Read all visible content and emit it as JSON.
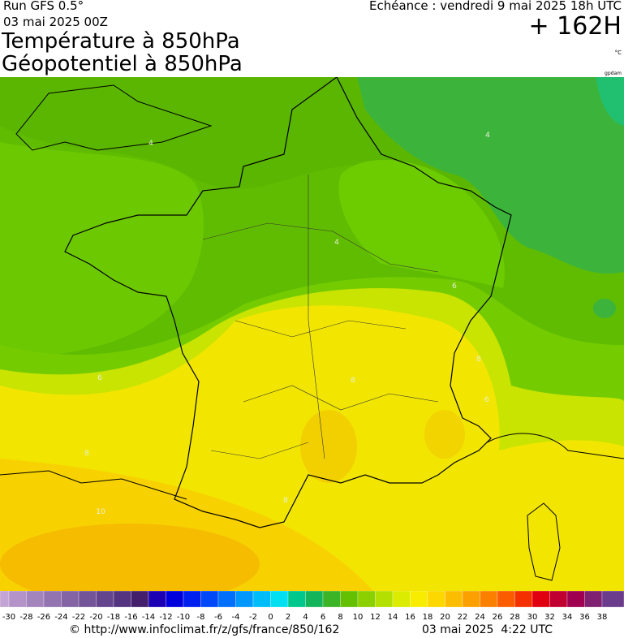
{
  "header": {
    "run": "Run GFS 0.5°",
    "date": "03 mai 2025 00Z",
    "title1": "Température à 850hPa",
    "title2": "Géopotentiel à 850hPa",
    "echeance": "Echéance : vendredi 9 mai 2025 18h UTC",
    "lead": "+ 162H",
    "unit": "°C",
    "credit": "gpdam"
  },
  "map": {
    "contour_labels": [
      "4",
      "4",
      "4",
      "6",
      "6",
      "8",
      "8",
      "10",
      "8",
      "8",
      "6"
    ]
  },
  "colorbar": {
    "labels": [
      -30,
      -28,
      -26,
      -24,
      -22,
      -20,
      -18,
      -16,
      -14,
      -12,
      -10,
      -8,
      -6,
      -4,
      -2,
      0,
      2,
      4,
      6,
      8,
      10,
      12,
      14,
      16,
      18,
      20,
      22,
      24,
      26,
      28,
      30,
      32,
      34,
      36,
      38
    ],
    "colors": [
      "#c4a4d4",
      "#b494c8",
      "#a484bc",
      "#9474b0",
      "#8464a4",
      "#745498",
      "#64448c",
      "#543480",
      "#44206c",
      "#1c00b4",
      "#0000dc",
      "#0020f0",
      "#0048f8",
      "#0070fc",
      "#0098fc",
      "#00bcf8",
      "#00e0f0",
      "#00c88c",
      "#14b45a",
      "#3cb428",
      "#64c000",
      "#8cd000",
      "#b4e000",
      "#dcec00",
      "#f8ec00",
      "#fcd800",
      "#fcbc00",
      "#fca000",
      "#fc8000",
      "#fc5c00",
      "#f43000",
      "#e00010",
      "#c00030",
      "#a00050",
      "#802070",
      "#6c3c8c",
      "#c8a8dc"
    ]
  },
  "footer": {
    "url": "© http://www.infoclimat.fr/z/gfs/france/850/162",
    "timestamp": "03 mai 2025  4:22 UTC"
  }
}
